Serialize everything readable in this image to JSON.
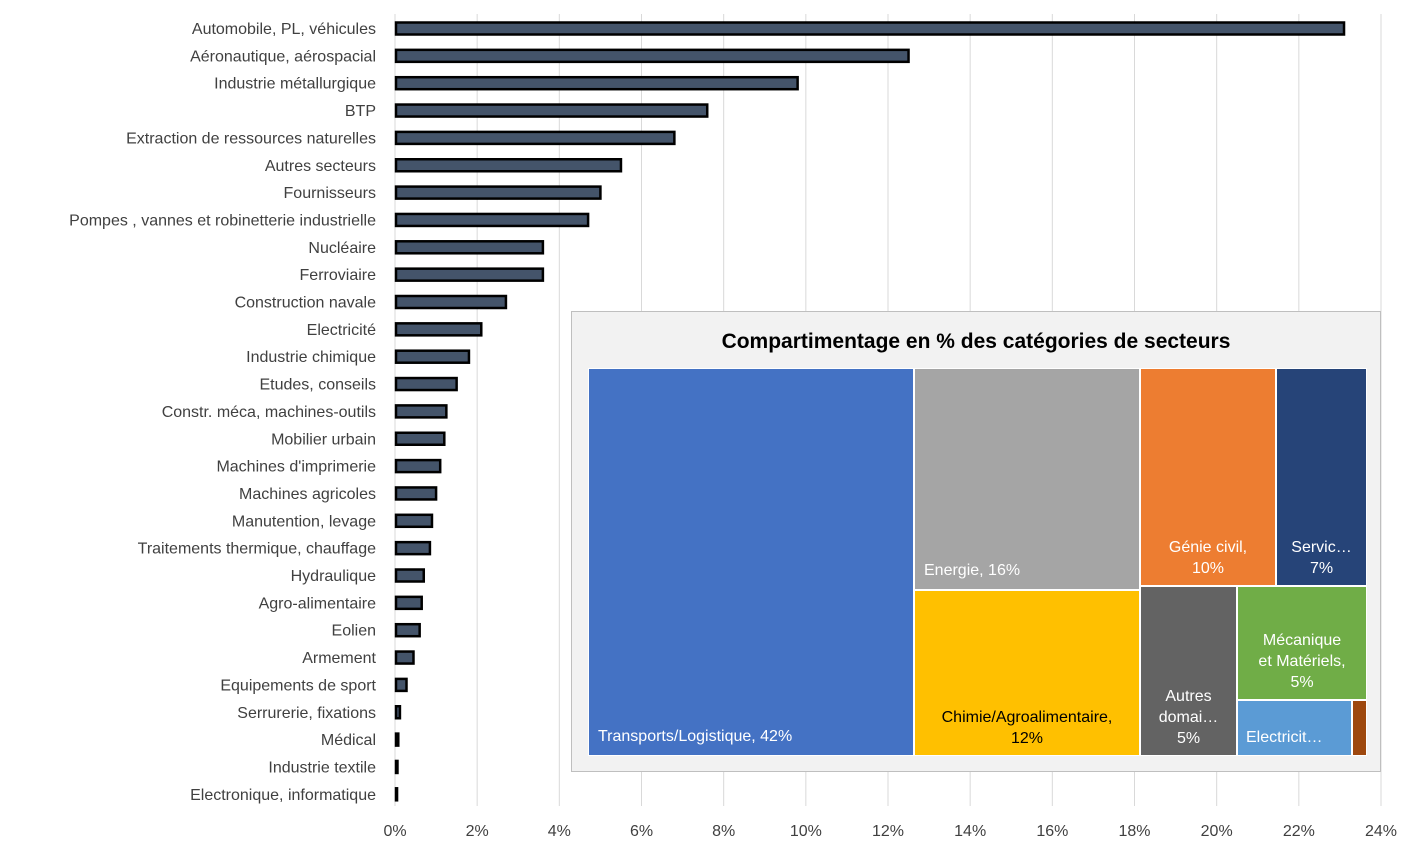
{
  "chart_data": [
    {
      "type": "bar",
      "orientation": "horizontal",
      "categories": [
        "Automobile, PL, véhicules",
        "Aéronautique, aérospacial",
        "Industrie métallurgique",
        "BTP",
        "Extraction de ressources naturelles",
        "Autres secteurs",
        "Fournisseurs",
        "Pompes , vannes et robinetterie industrielle",
        "Nucléaire",
        "Ferroviaire",
        "Construction navale",
        "Electricité",
        "Industrie chimique",
        "Etudes, conseils",
        "Constr. méca, machines-outils",
        "Mobilier urbain",
        "Machines d'imprimerie",
        "Machines agricoles",
        "Manutention, levage",
        "Traitements thermique,  chauffage",
        "Hydraulique",
        "Agro-alimentaire",
        "Eolien",
        "Armement",
        "Equipements de sport",
        "Serrurerie, fixations",
        "Médical",
        "Industrie textile",
        "Electronique, informatique"
      ],
      "values": [
        23.1,
        12.5,
        9.8,
        7.6,
        6.8,
        5.5,
        5.0,
        4.7,
        3.6,
        3.6,
        2.7,
        2.1,
        1.8,
        1.5,
        1.25,
        1.2,
        1.1,
        1.0,
        0.9,
        0.85,
        0.7,
        0.65,
        0.6,
        0.45,
        0.28,
        0.12,
        0.08,
        0.06,
        0.05
      ],
      "xlim": [
        0,
        24
      ],
      "x_ticks": [
        "0%",
        "2%",
        "4%",
        "6%",
        "8%",
        "10%",
        "12%",
        "14%",
        "16%",
        "18%",
        "20%",
        "22%",
        "24%"
      ],
      "grid": true,
      "bar_color": "#44546a",
      "bar_border_color": "#000000"
    },
    {
      "type": "treemap",
      "title": "Compartimentage en % des catégories de secteurs",
      "items": [
        {
          "label": "Transports/Logistique, 42%",
          "value": 42,
          "color": "#4472c4"
        },
        {
          "label": "Energie, 16%",
          "value": 16,
          "color": "#a5a5a5"
        },
        {
          "label": "Chimie/Agroalimentaire,\n12%",
          "value": 12,
          "color": "#ffc000"
        },
        {
          "label": "Génie civil,\n10%",
          "value": 10,
          "color": "#ed7d31"
        },
        {
          "label": "Servic…\n7%",
          "value": 7,
          "color": "#264478"
        },
        {
          "label": "Autres\ndomai…\n5%",
          "value": 5,
          "color": "#636363"
        },
        {
          "label": "Mécanique\net Matériels,\n5%",
          "value": 5,
          "color": "#70ad47"
        },
        {
          "label": "Electricit…",
          "value": 3,
          "color": "#5b9bd5"
        },
        {
          "label": "",
          "value": 0.5,
          "color": "#9e480e"
        }
      ]
    }
  ]
}
